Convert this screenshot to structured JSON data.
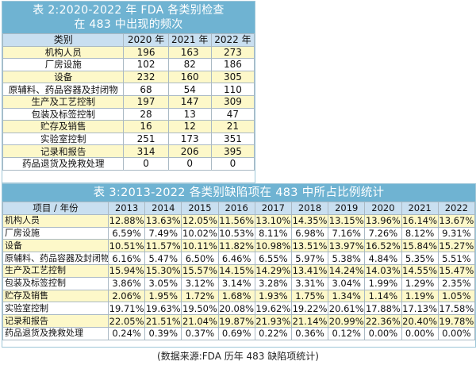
{
  "table2": {
    "title_line1": "表 2:2020-2022 年 FDA 各类别检查",
    "title_line2": "在 483 中出现的频次",
    "headers": [
      "类别",
      "2020 年",
      "2021 年",
      "2022 年"
    ],
    "rows": [
      [
        "机构人员",
        "196",
        "163",
        "273"
      ],
      [
        "厂房设施",
        "102",
        "82",
        "186"
      ],
      [
        "设备",
        "232",
        "160",
        "305"
      ],
      [
        "原辅料、药品容器及封闭物",
        "68",
        "54",
        "110"
      ],
      [
        "生产及工艺控制",
        "197",
        "147",
        "309"
      ],
      [
        "包装及标签控制",
        "28",
        "13",
        "47"
      ],
      [
        "贮存及销售",
        "16",
        "12",
        "21"
      ],
      [
        "实验室控制",
        "251",
        "173",
        "351"
      ],
      [
        "记录和报告",
        "314",
        "206",
        "395"
      ],
      [
        "药品退货及挽救处理",
        "0",
        "0",
        "0"
      ]
    ]
  },
  "table3": {
    "title": "表 3:2013-2022 各类别缺陷项在 483 中所占比例统计",
    "headers": [
      "项目 / 年份",
      "2013",
      "2014",
      "2015",
      "2016",
      "2017",
      "2018",
      "2019",
      "2020",
      "2021",
      "2022"
    ],
    "rows": [
      [
        "机构人员",
        "12.88%",
        "13.63%",
        "12.05%",
        "11.56%",
        "13.10%",
        "14.35%",
        "13.15%",
        "13.96%",
        "16.14%",
        "13.67%"
      ],
      [
        "厂房设施",
        "6.59%",
        "7.49%",
        "10.02%",
        "10.53%",
        "8.11%",
        "6.98%",
        "7.16%",
        "7.26%",
        "8.12%",
        "9.31%"
      ],
      [
        "设备",
        "10.51%",
        "11.57%",
        "10.11%",
        "11.82%",
        "10.98%",
        "13.51%",
        "13.97%",
        "16.52%",
        "15.84%",
        "15.27%"
      ],
      [
        "原辅料、药品容器及封闭物",
        "6.16%",
        "5.47%",
        "6.50%",
        "6.46%",
        "6.55%",
        "5.97%",
        "5.38%",
        "4.84%",
        "5.35%",
        "5.51%"
      ],
      [
        "生产及工艺控制",
        "15.94%",
        "15.30%",
        "15.57%",
        "14.15%",
        "14.29%",
        "13.41%",
        "14.24%",
        "14.03%",
        "14.55%",
        "15.47%"
      ],
      [
        "包装及标签控制",
        "3.86%",
        "3.05%",
        "3.12%",
        "3.14%",
        "3.28%",
        "3.31%",
        "3.04%",
        "1.99%",
        "1.29%",
        "2.35%"
      ],
      [
        "贮存及销售",
        "2.06%",
        "1.95%",
        "1.72%",
        "1.68%",
        "1.93%",
        "1.75%",
        "1.34%",
        "1.14%",
        "1.19%",
        "1.05%"
      ],
      [
        "实验室控制",
        "19.71%",
        "19.63%",
        "19.50%",
        "20.08%",
        "19.62%",
        "19.22%",
        "20.61%",
        "17.88%",
        "17.13%",
        "17.58%"
      ],
      [
        "记录和报告",
        "22.05%",
        "21.51%",
        "21.04%",
        "19.87%",
        "21.93%",
        "21.14%",
        "20.99%",
        "22.36%",
        "20.40%",
        "19.78%"
      ],
      [
        "药品退货及挽救处理",
        "0.24%",
        "0.39%",
        "0.37%",
        "0.69%",
        "0.22%",
        "0.36%",
        "0.12%",
        "0.00%",
        "0.00%",
        "0.00%"
      ]
    ]
  },
  "source": "(数据来源:FDA 历年 483 缺陷项统计)"
}
